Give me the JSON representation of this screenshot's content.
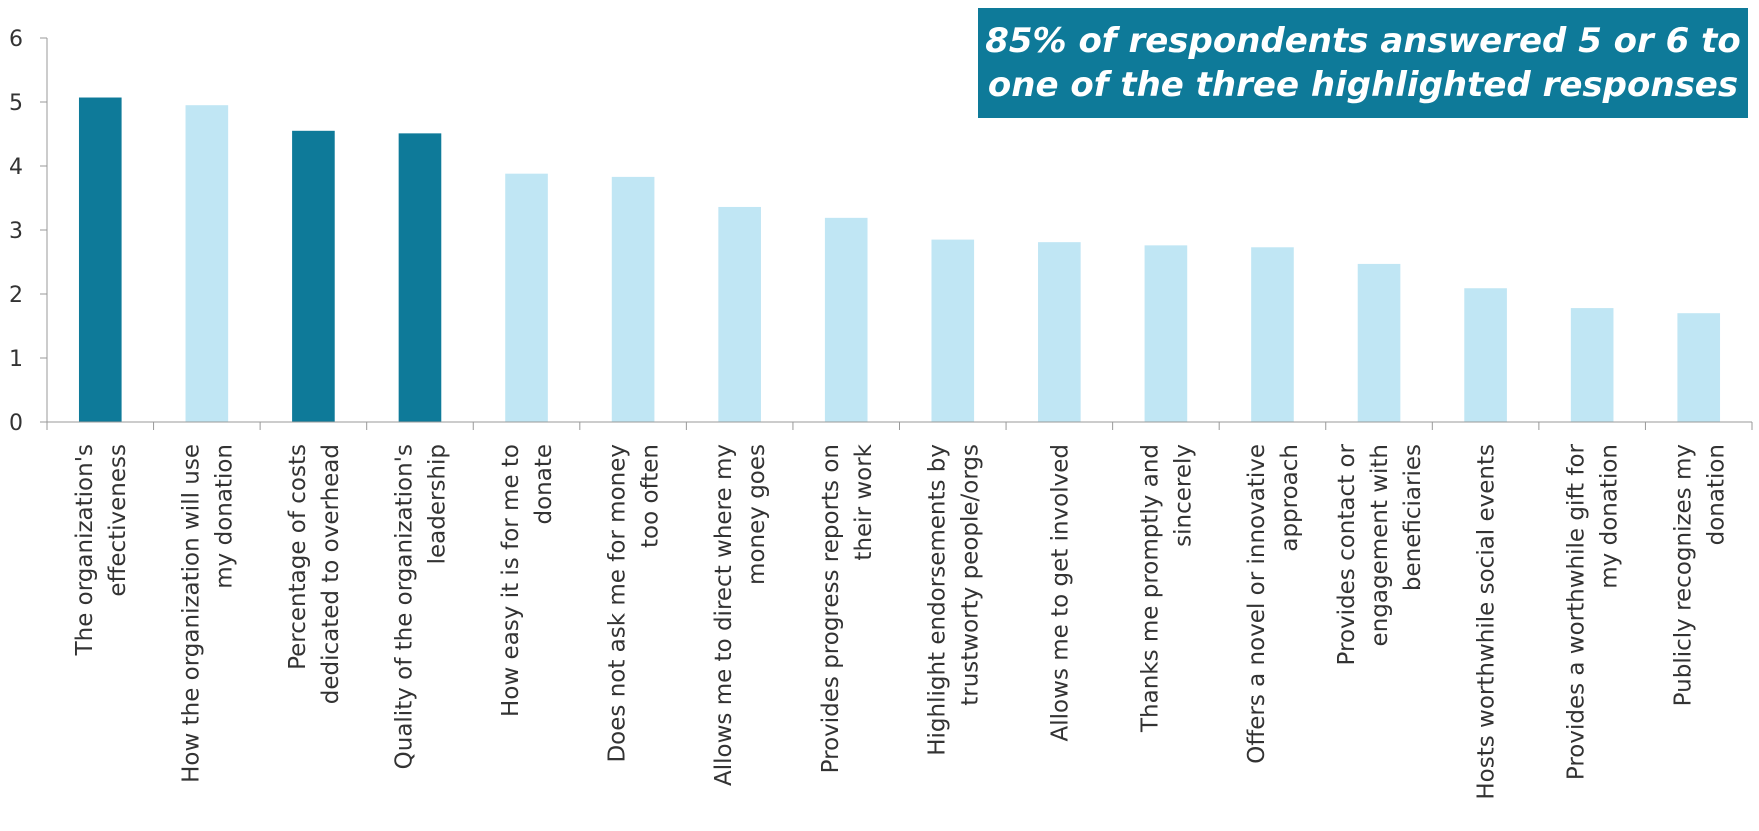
{
  "callout": {
    "line1": "85% of respondents answered 5 or 6 to",
    "line2": "one of the three highlighted responses"
  },
  "colors": {
    "highlight": "#0e7a99",
    "normal": "#c0e6f4",
    "axis": "#999999"
  },
  "chart_data": {
    "type": "bar",
    "title": "",
    "xlabel": "",
    "ylabel": "",
    "ylim": [
      0,
      6
    ],
    "yticks": [
      0,
      1,
      2,
      3,
      4,
      5,
      6
    ],
    "grid": false,
    "categories": [
      [
        "The organization's",
        "effectiveness"
      ],
      [
        "How the organization will use",
        "my donation"
      ],
      [
        "Percentage of costs",
        "dedicated to overhead"
      ],
      [
        "Quality of the organization's",
        "leadership"
      ],
      [
        "How easy it is for me to",
        "donate"
      ],
      [
        "Does not ask me for money",
        "too often"
      ],
      [
        "Allows me to direct where my",
        "money goes"
      ],
      [
        "Provides progress reports on",
        "their work"
      ],
      [
        "Highlight endorsements by",
        "trustworty people/orgs"
      ],
      [
        "Allows me to get involved"
      ],
      [
        "Thanks me promptly and",
        "sincerely"
      ],
      [
        "Offers a novel or innovative",
        "approach"
      ],
      [
        "Provides contact or",
        "engagement with",
        "beneficiaries"
      ],
      [
        "Hosts worthwhile social events"
      ],
      [
        "Provides a worthwhile gift for",
        "my donation"
      ],
      [
        "Publicly recognizes my",
        "donation"
      ]
    ],
    "values": [
      5.07,
      4.95,
      4.55,
      4.51,
      3.88,
      3.83,
      3.36,
      3.19,
      2.85,
      2.81,
      2.76,
      2.73,
      2.47,
      2.09,
      1.78,
      1.7
    ],
    "highlighted": [
      true,
      false,
      true,
      true,
      false,
      false,
      false,
      false,
      false,
      false,
      false,
      false,
      false,
      false,
      false,
      false
    ]
  }
}
